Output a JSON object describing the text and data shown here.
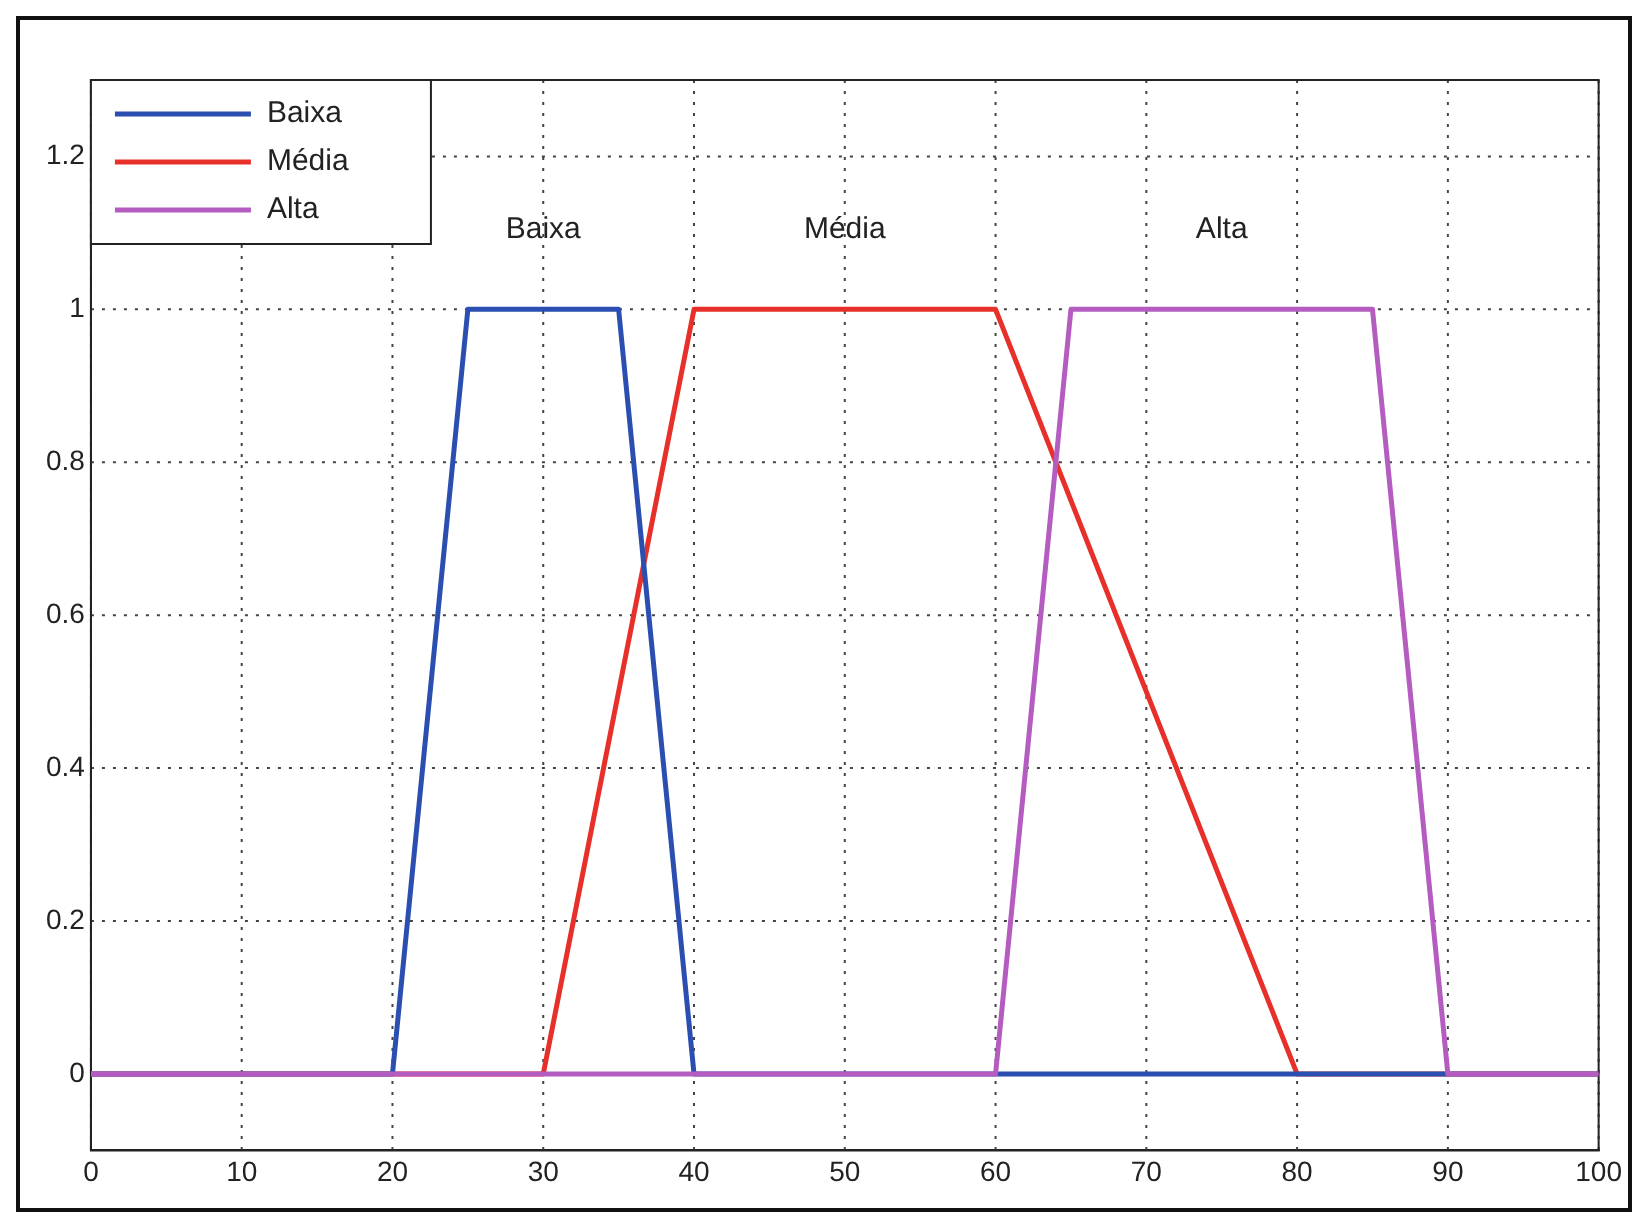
{
  "chart_data": {
    "type": "line",
    "xlim": [
      0,
      100
    ],
    "xticks": [
      0,
      10,
      20,
      30,
      40,
      50,
      60,
      70,
      80,
      90,
      100
    ],
    "ylim": [
      -0.1,
      1.3
    ],
    "yticks": [
      0,
      0.2,
      0.4,
      0.6,
      0.8,
      1,
      1.2
    ],
    "grid": true,
    "legend": "top left",
    "marker": "none",
    "line_style": "solid",
    "series": [
      {
        "name": "Baixa",
        "color": "#2b4fb0",
        "x": [
          0,
          20,
          25,
          35,
          40,
          100
        ],
        "values": [
          0,
          0,
          1,
          1,
          0,
          0
        ]
      },
      {
        "name": "Média",
        "color": "#e8302a",
        "x": [
          0,
          30,
          40,
          60,
          80,
          100
        ],
        "values": [
          0,
          0,
          1,
          1,
          0,
          0
        ]
      },
      {
        "name": "Alta",
        "color": "#b55cc0",
        "x": [
          0,
          60,
          65,
          85,
          90,
          100
        ],
        "values": [
          0,
          0,
          1,
          1,
          0,
          0
        ]
      }
    ],
    "annotations": [
      "Baixa",
      "Média",
      "Alta"
    ]
  }
}
